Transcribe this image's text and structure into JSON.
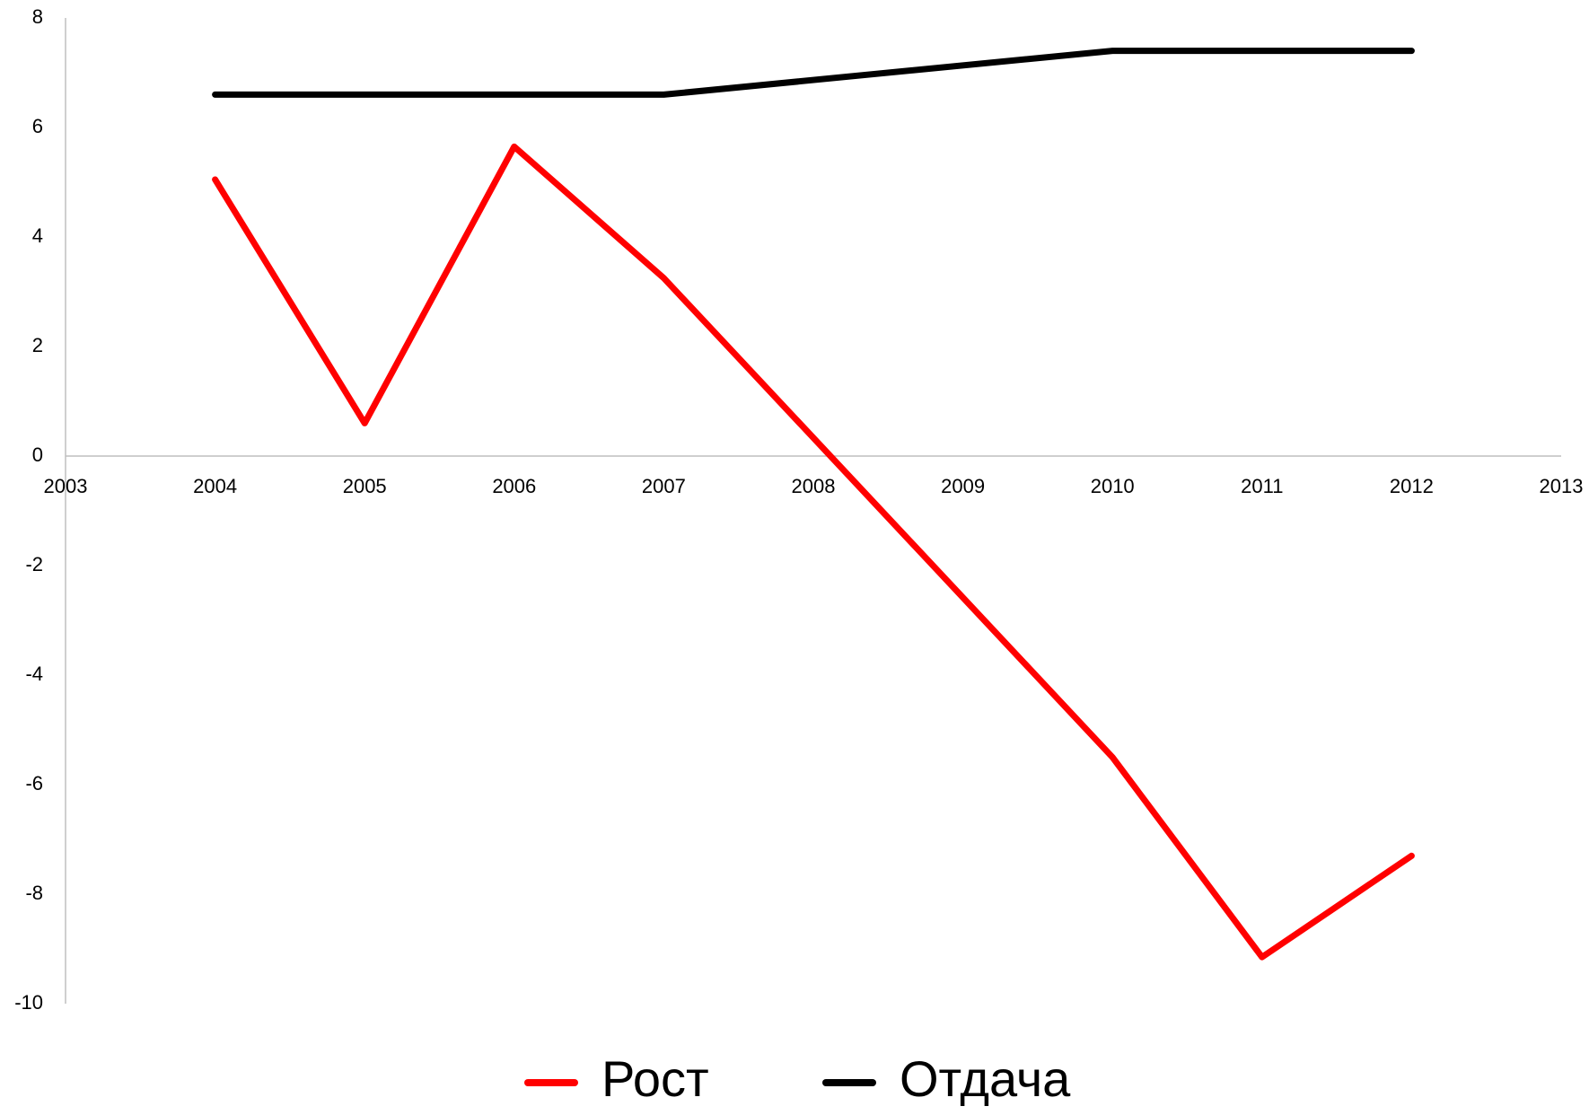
{
  "chart_data": {
    "type": "line",
    "x": [
      2004,
      2005,
      2006,
      2007,
      2010,
      2011,
      2012
    ],
    "series": [
      {
        "name": "Рост",
        "color": "#ff0000",
        "values": [
          5.05,
          0.6,
          5.65,
          3.25,
          -5.5,
          -9.15,
          -7.3
        ]
      },
      {
        "name": "Отдача",
        "color": "#000000",
        "values": [
          6.6,
          6.6,
          6.6,
          6.6,
          7.4,
          7.4,
          7.4
        ]
      }
    ],
    "xlim": [
      2003,
      2013
    ],
    "xticks": [
      2003,
      2004,
      2005,
      2006,
      2007,
      2008,
      2009,
      2010,
      2011,
      2012,
      2013
    ],
    "ylim": [
      -10,
      8
    ],
    "yticks": [
      -10,
      -8,
      -6,
      -4,
      -2,
      0,
      2,
      4,
      6,
      8
    ],
    "grid": false,
    "legend": "bottom"
  }
}
